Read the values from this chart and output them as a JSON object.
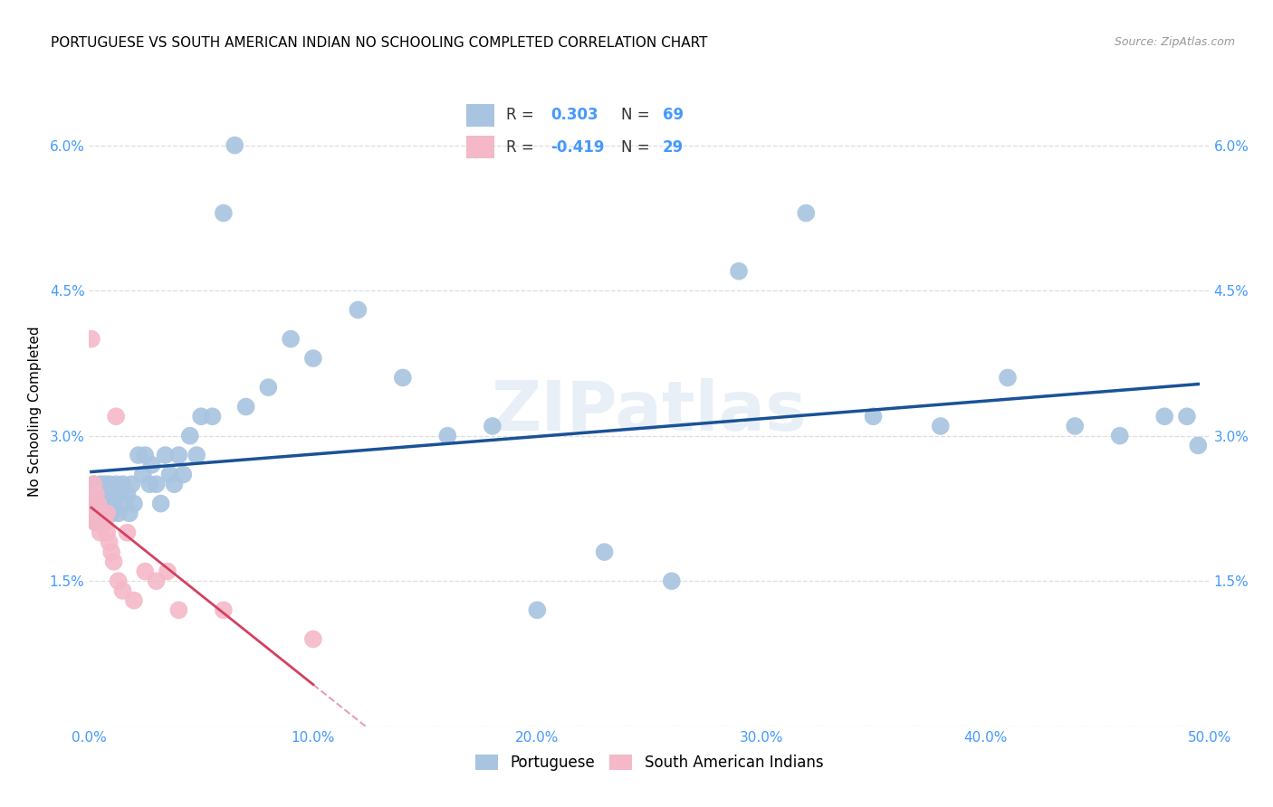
{
  "title": "PORTUGUESE VS SOUTH AMERICAN INDIAN NO SCHOOLING COMPLETED CORRELATION CHART",
  "source": "Source: ZipAtlas.com",
  "ylabel": "No Schooling Completed",
  "xlim": [
    0.0,
    0.5
  ],
  "ylim": [
    0.0,
    0.065
  ],
  "xticks": [
    0.0,
    0.1,
    0.2,
    0.3,
    0.4,
    0.5
  ],
  "yticks": [
    0.0,
    0.015,
    0.03,
    0.045,
    0.06
  ],
  "xticklabels": [
    "0.0%",
    "10.0%",
    "20.0%",
    "30.0%",
    "40.0%",
    "50.0%"
  ],
  "yticklabels": [
    "",
    "1.5%",
    "3.0%",
    "4.5%",
    "6.0%"
  ],
  "portuguese_R": 0.303,
  "portuguese_N": 69,
  "sai_R": -0.419,
  "sai_N": 29,
  "portuguese_color": "#a8c4e0",
  "portuguese_line_color": "#1a5296",
  "sai_color": "#f4b8c8",
  "sai_line_color": "#d44060",
  "portuguese_x": [
    0.001,
    0.001,
    0.002,
    0.002,
    0.003,
    0.003,
    0.004,
    0.004,
    0.005,
    0.005,
    0.006,
    0.006,
    0.007,
    0.007,
    0.008,
    0.008,
    0.009,
    0.009,
    0.01,
    0.01,
    0.011,
    0.012,
    0.013,
    0.014,
    0.015,
    0.016,
    0.017,
    0.018,
    0.019,
    0.02,
    0.022,
    0.024,
    0.025,
    0.027,
    0.028,
    0.03,
    0.032,
    0.034,
    0.036,
    0.038,
    0.04,
    0.042,
    0.045,
    0.048,
    0.05,
    0.055,
    0.06,
    0.065,
    0.07,
    0.08,
    0.09,
    0.1,
    0.12,
    0.14,
    0.16,
    0.18,
    0.2,
    0.23,
    0.26,
    0.29,
    0.32,
    0.35,
    0.38,
    0.41,
    0.44,
    0.46,
    0.48,
    0.49,
    0.495
  ],
  "portuguese_y": [
    0.024,
    0.022,
    0.025,
    0.023,
    0.024,
    0.022,
    0.023,
    0.021,
    0.025,
    0.022,
    0.024,
    0.022,
    0.025,
    0.023,
    0.022,
    0.024,
    0.023,
    0.025,
    0.022,
    0.024,
    0.023,
    0.025,
    0.022,
    0.024,
    0.025,
    0.023,
    0.024,
    0.022,
    0.025,
    0.023,
    0.028,
    0.026,
    0.028,
    0.025,
    0.027,
    0.025,
    0.023,
    0.028,
    0.026,
    0.025,
    0.028,
    0.026,
    0.03,
    0.028,
    0.032,
    0.032,
    0.053,
    0.06,
    0.033,
    0.035,
    0.04,
    0.038,
    0.043,
    0.036,
    0.03,
    0.031,
    0.012,
    0.018,
    0.015,
    0.047,
    0.053,
    0.032,
    0.031,
    0.036,
    0.031,
    0.03,
    0.032,
    0.032,
    0.029
  ],
  "sai_x": [
    0.001,
    0.001,
    0.001,
    0.002,
    0.002,
    0.003,
    0.003,
    0.004,
    0.004,
    0.005,
    0.005,
    0.006,
    0.007,
    0.008,
    0.008,
    0.009,
    0.01,
    0.011,
    0.012,
    0.013,
    0.015,
    0.017,
    0.02,
    0.025,
    0.03,
    0.035,
    0.04,
    0.06,
    0.1
  ],
  "sai_y": [
    0.04,
    0.023,
    0.022,
    0.025,
    0.022,
    0.024,
    0.021,
    0.023,
    0.022,
    0.021,
    0.02,
    0.022,
    0.021,
    0.022,
    0.02,
    0.019,
    0.018,
    0.017,
    0.032,
    0.015,
    0.014,
    0.02,
    0.013,
    0.016,
    0.015,
    0.016,
    0.012,
    0.012,
    0.009
  ],
  "watermark": "ZIPatlas",
  "background_color": "#ffffff",
  "grid_color": "#dddddd",
  "title_fontsize": 11,
  "ylabel_fontsize": 11,
  "tick_fontsize": 11,
  "tick_color": "#4499ff",
  "legend_color_blue": "#4499ff",
  "legend_text_color": "#333333"
}
